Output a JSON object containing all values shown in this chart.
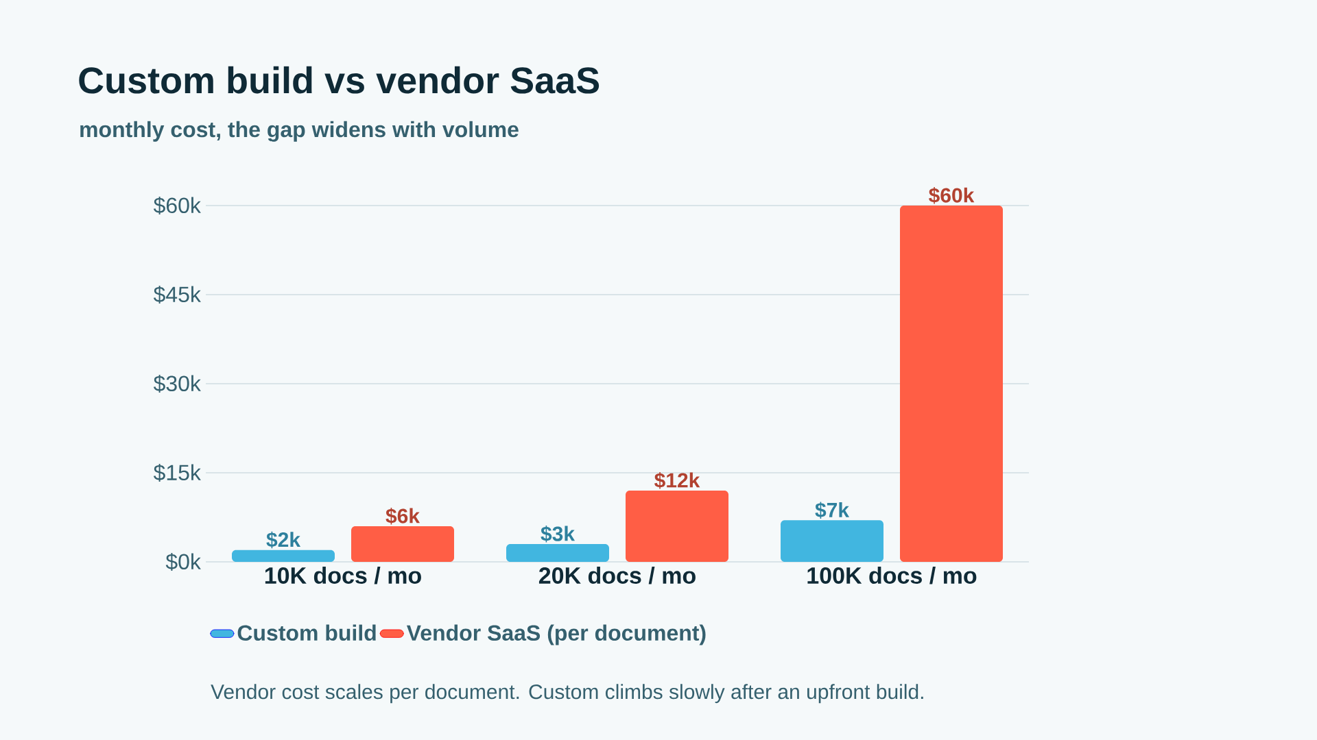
{
  "chart_data": {
    "type": "bar",
    "title": "Custom build vs vendor SaaS",
    "subtitle": "monthly cost, the gap widens with volume",
    "categories": [
      "10K docs / mo",
      "20K docs / mo",
      "100K docs / mo"
    ],
    "series": [
      {
        "name": "Custom build",
        "color": "#41b6e0",
        "values": [
          2,
          3,
          7
        ],
        "value_labels": [
          "$2k",
          "$3k",
          "$7k"
        ]
      },
      {
        "name": "Vendor SaaS (per document)",
        "color": "#ff5e45",
        "values": [
          6,
          12,
          60
        ],
        "value_labels": [
          "$6k",
          "$12k",
          "$60k"
        ]
      }
    ],
    "ylim": [
      0,
      60
    ],
    "yticks": [
      {
        "value": 0,
        "label": "$0k"
      },
      {
        "value": 15,
        "label": "$15k"
      },
      {
        "value": 30,
        "label": "$30k"
      },
      {
        "value": 45,
        "label": "$45k"
      },
      {
        "value": 60,
        "label": "$60k"
      }
    ],
    "grid": "y",
    "legend": "bottom",
    "annotations": [
      "Vendor cost scales per document. Custom climbs slowly after an upfront build."
    ]
  }
}
